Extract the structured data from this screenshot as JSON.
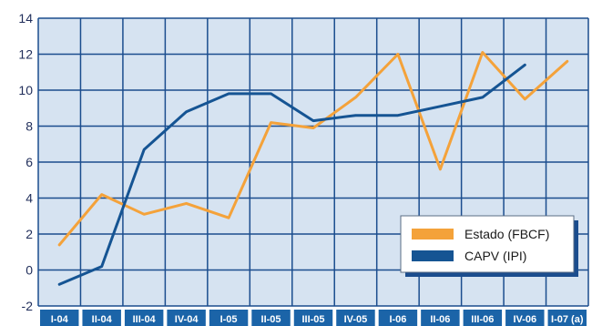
{
  "chart_data": {
    "type": "line",
    "categories": [
      "I-04",
      "II-04",
      "III-04",
      "IV-04",
      "I-05",
      "II-05",
      "III-05",
      "IV-05",
      "I-06",
      "II-06",
      "III-06",
      "IV-06",
      "I-07 (a)"
    ],
    "ylim": [
      -2,
      14
    ],
    "yticks": [
      -2,
      0,
      2,
      4,
      6,
      8,
      10,
      12,
      14
    ],
    "grid": true,
    "legend_position": "bottom-right",
    "series": [
      {
        "name": "Estado (FBCF)",
        "color": "#f4a23a",
        "values": [
          1.4,
          4.2,
          3.1,
          3.7,
          2.9,
          8.2,
          7.9,
          9.6,
          12.0,
          5.6,
          12.1,
          9.5,
          11.6
        ]
      },
      {
        "name": "CAPV (IPI)",
        "color": "#155493",
        "values": [
          -0.8,
          0.2,
          6.7,
          8.8,
          9.8,
          9.8,
          8.3,
          8.6,
          8.6,
          9.1,
          9.6,
          11.4,
          null
        ]
      }
    ]
  },
  "colors": {
    "plot_background": "#d6e3f1",
    "grid": "#1b4d8e",
    "tick_box": "#1b64a8",
    "y_tick_text": "#1f2d5a"
  }
}
